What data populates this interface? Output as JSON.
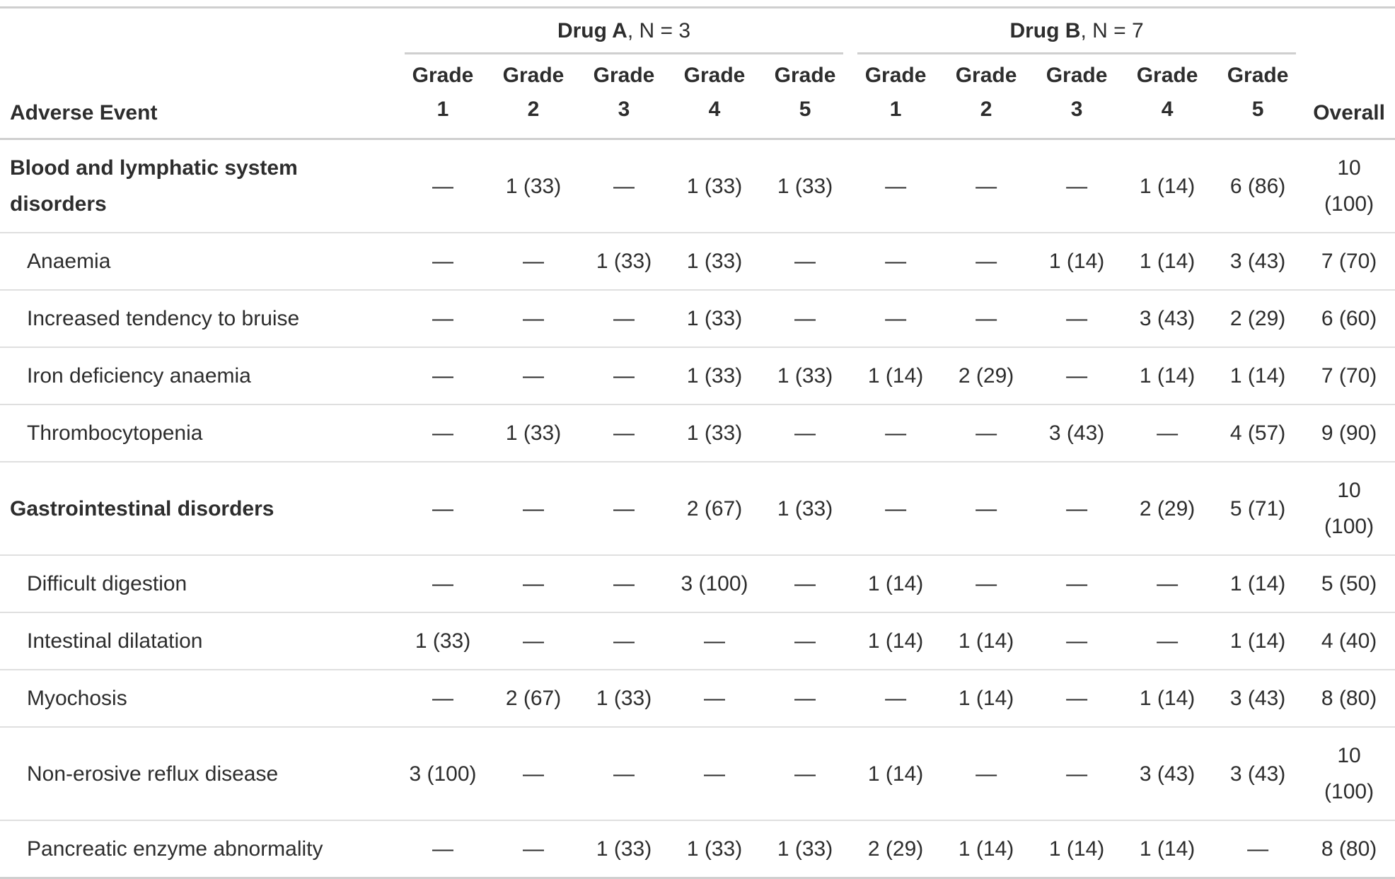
{
  "page": {
    "background": "#ffffff"
  },
  "colors": {
    "text": "#2d2d2d",
    "heavy_rule": "#cfcfcf",
    "light_rule": "#dfdfdf"
  },
  "chart_data": {
    "type": "table",
    "stub_header": "Adverse Event",
    "overall_header": "Overall",
    "spanners": [
      {
        "drug": "Drug A",
        "suffix": ", N = 3"
      },
      {
        "drug": "Drug B",
        "suffix": ", N = 7"
      }
    ],
    "grade_headers": [
      {
        "line1": "Grade",
        "line2": "1"
      },
      {
        "line1": "Grade",
        "line2": "2"
      },
      {
        "line1": "Grade",
        "line2": "3"
      },
      {
        "line1": "Grade",
        "line2": "4"
      },
      {
        "line1": "Grade",
        "line2": "5"
      },
      {
        "line1": "Grade",
        "line2": "1"
      },
      {
        "line1": "Grade",
        "line2": "2"
      },
      {
        "line1": "Grade",
        "line2": "3"
      },
      {
        "line1": "Grade",
        "line2": "4"
      },
      {
        "line1": "Grade",
        "line2": "5"
      }
    ],
    "rows": [
      {
        "type": "group",
        "label": "Blood and lymphatic system disorders",
        "values": [
          "—",
          "1 (33)",
          "—",
          "1 (33)",
          "1 (33)",
          "—",
          "—",
          "—",
          "1 (14)",
          "6 (86)",
          "10\n(100)"
        ]
      },
      {
        "type": "event",
        "label": "Anaemia",
        "values": [
          "—",
          "—",
          "1 (33)",
          "1 (33)",
          "—",
          "—",
          "—",
          "1 (14)",
          "1 (14)",
          "3 (43)",
          "7 (70)"
        ]
      },
      {
        "type": "event",
        "label": "Increased tendency to bruise",
        "values": [
          "—",
          "—",
          "—",
          "1 (33)",
          "—",
          "—",
          "—",
          "—",
          "3 (43)",
          "2 (29)",
          "6 (60)"
        ]
      },
      {
        "type": "event",
        "label": "Iron deficiency anaemia",
        "values": [
          "—",
          "—",
          "—",
          "1 (33)",
          "1 (33)",
          "1 (14)",
          "2 (29)",
          "—",
          "1 (14)",
          "1 (14)",
          "7 (70)"
        ]
      },
      {
        "type": "event",
        "label": "Thrombocytopenia",
        "values": [
          "—",
          "1 (33)",
          "—",
          "1 (33)",
          "—",
          "—",
          "—",
          "3 (43)",
          "—",
          "4 (57)",
          "9 (90)"
        ]
      },
      {
        "type": "group",
        "label": "Gastrointestinal disorders",
        "values": [
          "—",
          "—",
          "—",
          "2 (67)",
          "1 (33)",
          "—",
          "—",
          "—",
          "2 (29)",
          "5 (71)",
          "10\n(100)"
        ]
      },
      {
        "type": "event",
        "label": "Difficult digestion",
        "values": [
          "—",
          "—",
          "—",
          "3 (100)",
          "—",
          "1 (14)",
          "—",
          "—",
          "—",
          "1 (14)",
          "5 (50)"
        ]
      },
      {
        "type": "event",
        "label": "Intestinal dilatation",
        "values": [
          "1 (33)",
          "—",
          "—",
          "—",
          "—",
          "1 (14)",
          "1 (14)",
          "—",
          "—",
          "1 (14)",
          "4 (40)"
        ]
      },
      {
        "type": "event",
        "label": "Myochosis",
        "values": [
          "—",
          "2 (67)",
          "1 (33)",
          "—",
          "—",
          "—",
          "1 (14)",
          "—",
          "1 (14)",
          "3 (43)",
          "8 (80)"
        ]
      },
      {
        "type": "event",
        "label": "Non-erosive reflux disease",
        "values": [
          "3 (100)",
          "—",
          "—",
          "—",
          "—",
          "1 (14)",
          "—",
          "—",
          "3 (43)",
          "3 (43)",
          "10\n(100)"
        ]
      },
      {
        "type": "event",
        "label": "Pancreatic enzyme abnormality",
        "values": [
          "—",
          "—",
          "1 (33)",
          "1 (33)",
          "1 (33)",
          "2 (29)",
          "1 (14)",
          "1 (14)",
          "1 (14)",
          "—",
          "8 (80)"
        ]
      }
    ]
  }
}
